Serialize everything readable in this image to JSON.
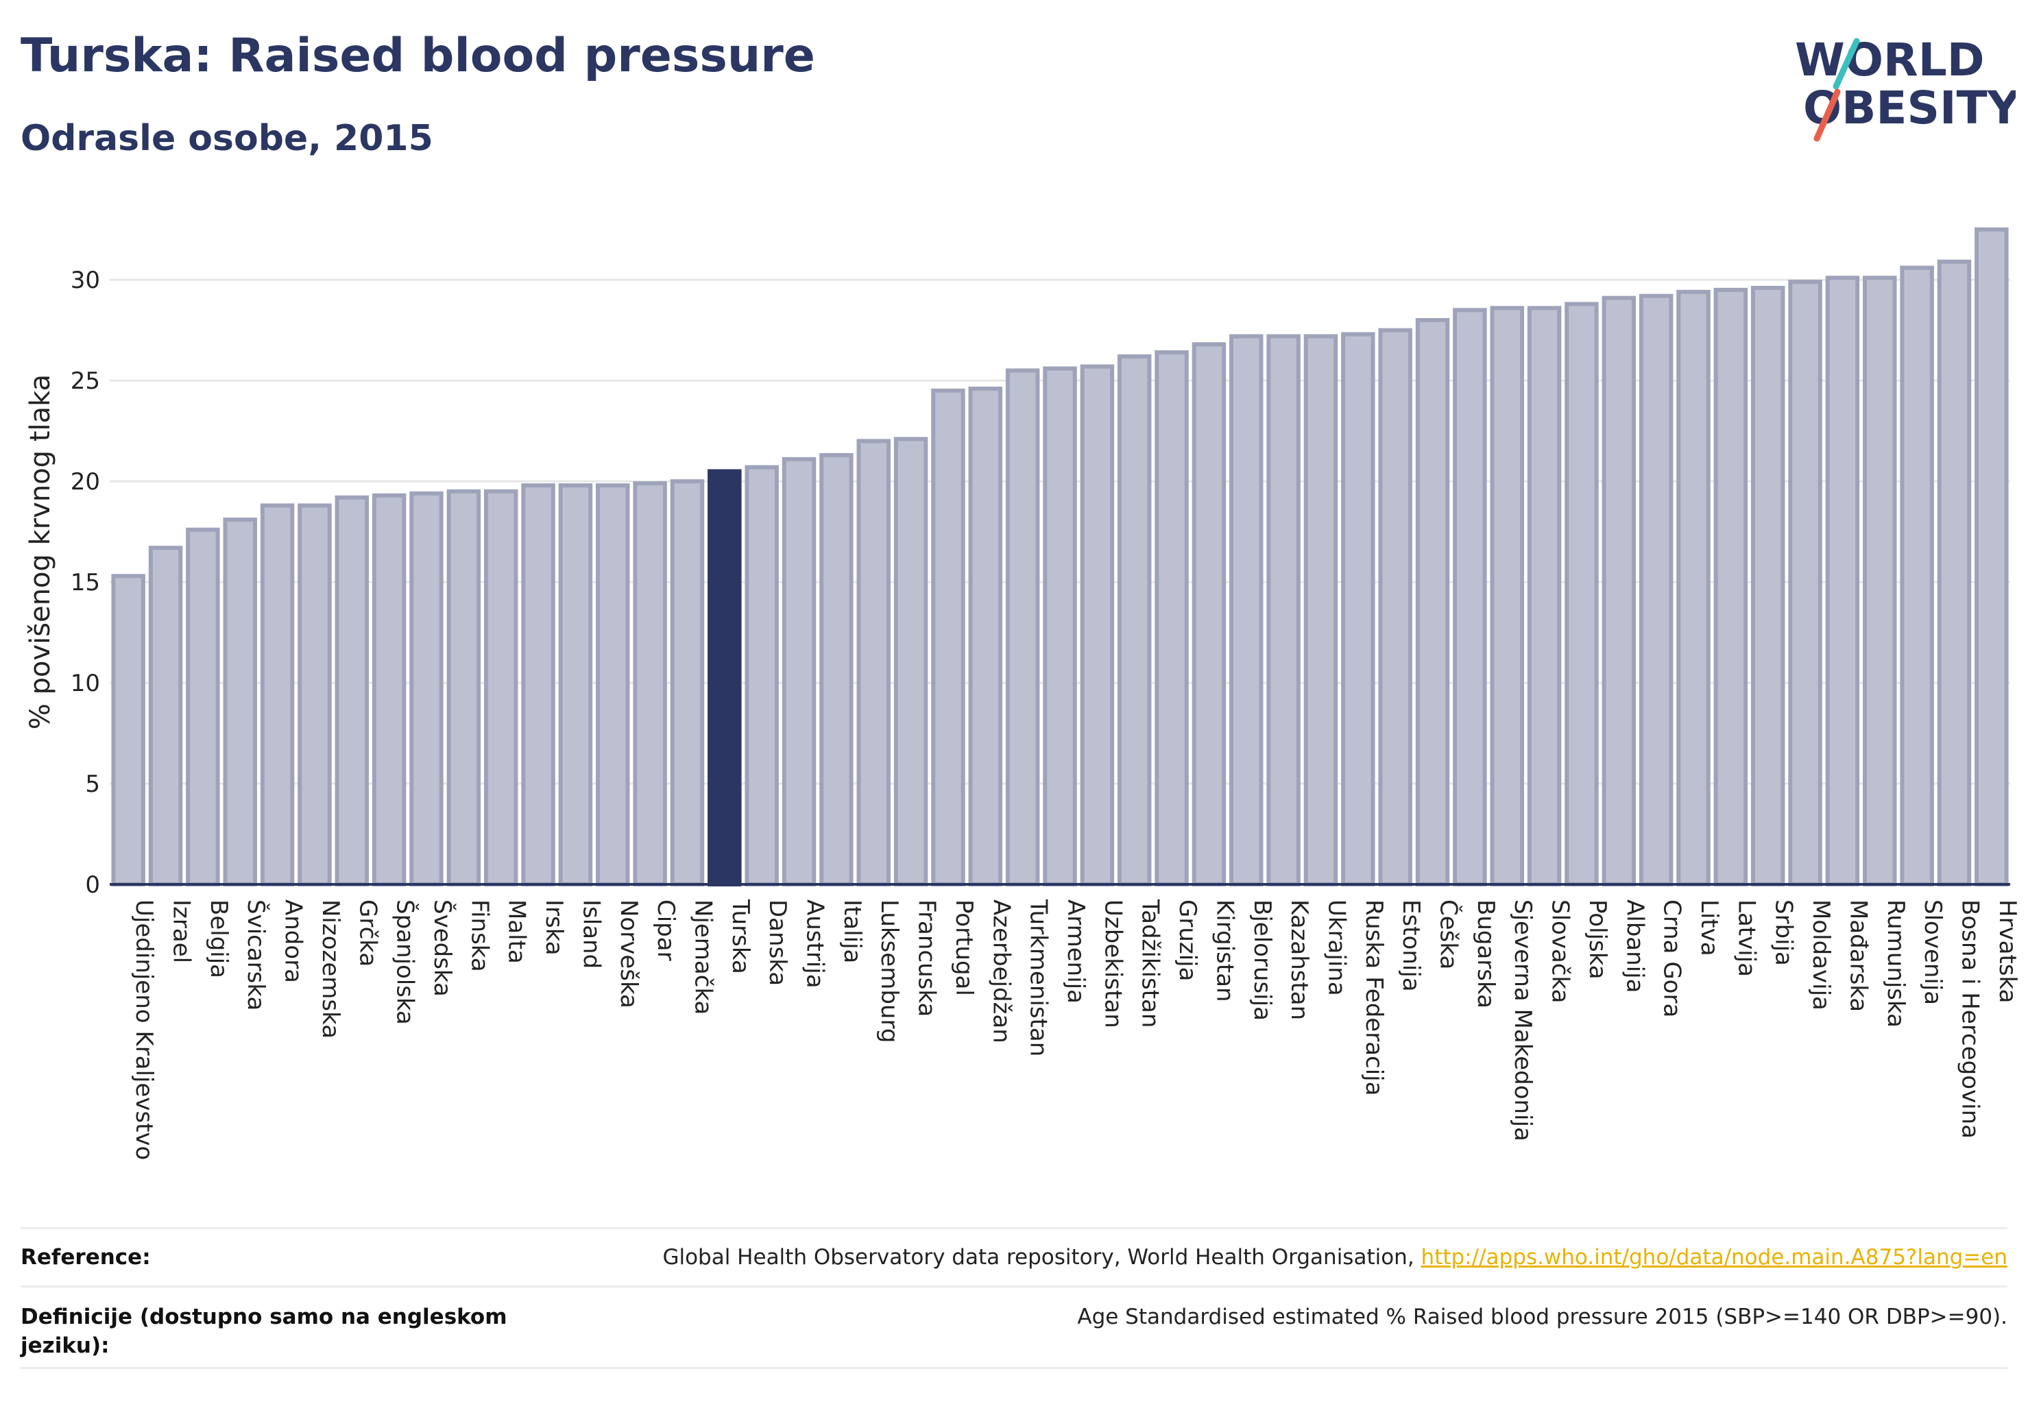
{
  "header": {
    "title": "Turska: Raised blood pressure",
    "subtitle": "Odrasle osobe, 2015"
  },
  "logo": {
    "line1_prefix": "W",
    "line1_o": "O",
    "line1_suffix": "RLD",
    "line2_o": "O",
    "line2_suffix": "BESITY",
    "colors": {
      "navy": "#2b3762",
      "teal": "#3bbfbf",
      "coral": "#e8604c"
    }
  },
  "chart_data": {
    "type": "bar",
    "ylabel": "% povišenog krvnog tlaka",
    "ylim": [
      0,
      33
    ],
    "yticks": [
      0,
      5,
      10,
      15,
      20,
      25,
      30
    ],
    "grid": true,
    "highlight": "Turska",
    "colors": {
      "bar": "#bcc0d0",
      "bar_border": "#9ea3ba",
      "highlight": "#2b3762",
      "axis": "#2b3762",
      "grid": "#e6e6e6"
    },
    "categories": [
      "Ujedinjeno Kraljevstvo",
      "Izrael",
      "Belgija",
      "Švicarska",
      "Andora",
      "Nizozemska",
      "Grčka",
      "Španjolska",
      "Švedska",
      "Finska",
      "Malta",
      "Irska",
      "Island",
      "Norveška",
      "Cipar",
      "Njemačka",
      "Turska",
      "Danska",
      "Austrija",
      "Italija",
      "Luksemburg",
      "Francuska",
      "Portugal",
      "Azerbejdžan",
      "Turkmenistan",
      "Armenija",
      "Uzbekistan",
      "Tadžikistan",
      "Gruzija",
      "Kirgistan",
      "Bjelorusija",
      "Kazahstan",
      "Ukrajina",
      "Ruska Federacija",
      "Estonija",
      "Češka",
      "Bugarska",
      "Sjeverna Makedonija",
      "Slovačka",
      "Poljska",
      "Albanija",
      "Crna Gora",
      "Litva",
      "Latvija",
      "Srbija",
      "Moldavija",
      "Mađarska",
      "Rumunjska",
      "Slovenija",
      "Bosna i Hercegovina",
      "Hrvatska"
    ],
    "values": [
      15.3,
      16.7,
      17.6,
      18.1,
      18.8,
      18.8,
      19.2,
      19.3,
      19.4,
      19.5,
      19.5,
      19.8,
      19.8,
      19.8,
      19.9,
      20.0,
      20.5,
      20.7,
      21.1,
      21.3,
      22.0,
      22.1,
      24.5,
      24.6,
      25.5,
      25.6,
      25.7,
      26.2,
      26.4,
      26.8,
      27.2,
      27.2,
      27.2,
      27.3,
      27.5,
      28.0,
      28.5,
      28.6,
      28.6,
      28.8,
      29.1,
      29.2,
      29.4,
      29.5,
      29.6,
      29.9,
      30.1,
      30.1,
      30.6,
      30.9,
      32.5
    ]
  },
  "footer": {
    "reference_label": "Reference:",
    "reference_text": "Global Health Observatory data repository, World Health Organisation, ",
    "reference_link": "http://apps.who.int/gho/data/node.main.A875?lang=en",
    "definition_label": "Definicije (dostupno samo na engleskom jeziku):",
    "definition_text": "Age Standardised estimated % Raised blood pressure 2015 (SBP>=140 OR DBP>=90)."
  }
}
